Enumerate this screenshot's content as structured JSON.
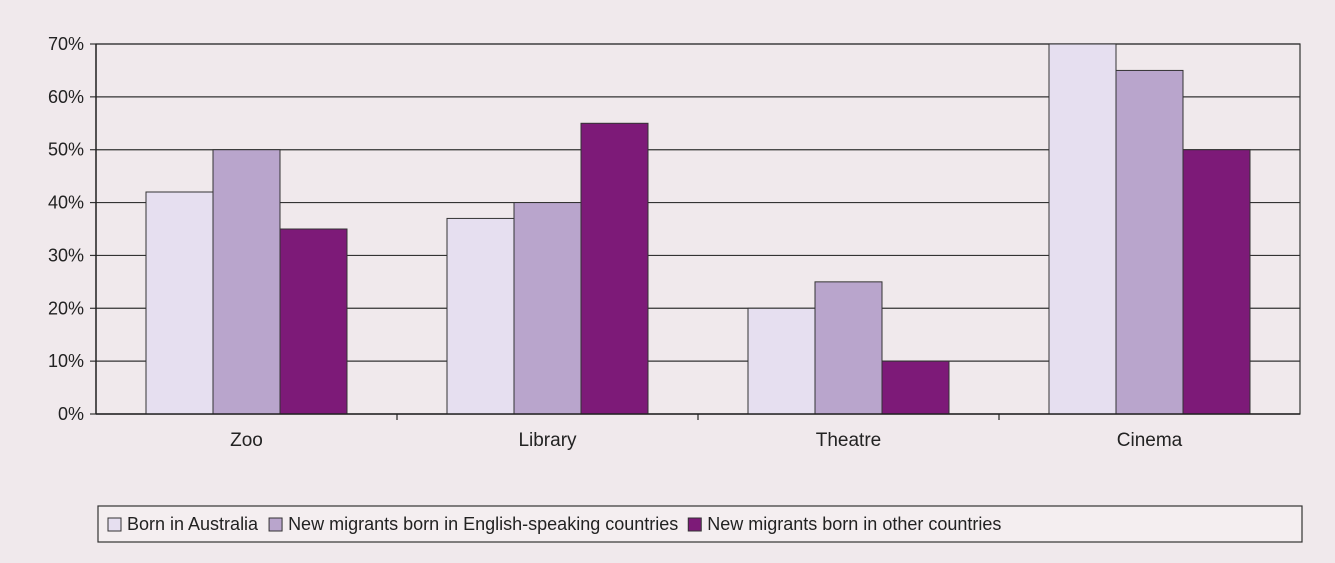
{
  "chart_data": {
    "type": "bar",
    "categories": [
      "Zoo",
      "Library",
      "Theatre",
      "Cinema"
    ],
    "series": [
      {
        "name": "Born in Australia",
        "values": [
          42,
          37,
          20,
          70
        ],
        "color": "#e6dff0"
      },
      {
        "name": "New migrants born in English-speaking countries",
        "values": [
          50,
          40,
          25,
          65
        ],
        "color": "#b9a5cc"
      },
      {
        "name": "New migrants born in other countries",
        "values": [
          35,
          55,
          10,
          50
        ],
        "color": "#7d1a78"
      }
    ],
    "ylim": [
      0,
      70
    ],
    "yticks": [
      0,
      10,
      20,
      30,
      40,
      50,
      60,
      70
    ],
    "ytick_labels": [
      "0%",
      "10%",
      "20%",
      "30%",
      "40%",
      "50%",
      "60%",
      "70%"
    ],
    "grid": true,
    "legend_position": "bottom",
    "title": "",
    "xlabel": "",
    "ylabel": ""
  }
}
